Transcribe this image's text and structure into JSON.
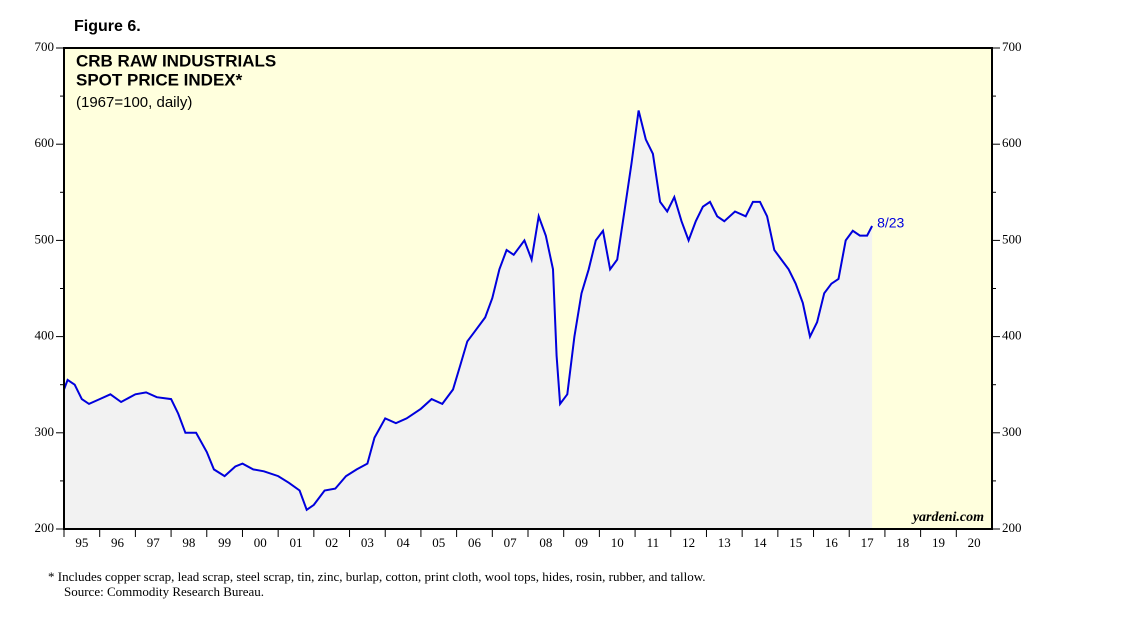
{
  "figure": "Figure 6.",
  "chart_data": {
    "type": "line",
    "title": "CRB RAW INDUSTRIALS",
    "title_line2": "SPOT PRICE INDEX*",
    "subtitle": "(1967=100, daily)",
    "end_label": "8/23",
    "source_mark": "yardeni.com",
    "color": "#0000dd",
    "area_color": "#f2f2f2",
    "background": "#ffffdd",
    "xlim": [
      1995,
      2021
    ],
    "ylim": [
      200,
      700
    ],
    "yticks": [
      200,
      300,
      400,
      500,
      600,
      700
    ],
    "xticks": [
      {
        "value": 1995,
        "label": "95"
      },
      {
        "value": 1996,
        "label": "96"
      },
      {
        "value": 1997,
        "label": "97"
      },
      {
        "value": 1998,
        "label": "98"
      },
      {
        "value": 1999,
        "label": "99"
      },
      {
        "value": 2000,
        "label": "00"
      },
      {
        "value": 2001,
        "label": "01"
      },
      {
        "value": 2002,
        "label": "02"
      },
      {
        "value": 2003,
        "label": "03"
      },
      {
        "value": 2004,
        "label": "04"
      },
      {
        "value": 2005,
        "label": "05"
      },
      {
        "value": 2006,
        "label": "06"
      },
      {
        "value": 2007,
        "label": "07"
      },
      {
        "value": 2008,
        "label": "08"
      },
      {
        "value": 2009,
        "label": "09"
      },
      {
        "value": 2010,
        "label": "10"
      },
      {
        "value": 2011,
        "label": "11"
      },
      {
        "value": 2012,
        "label": "12"
      },
      {
        "value": 2013,
        "label": "13"
      },
      {
        "value": 2014,
        "label": "14"
      },
      {
        "value": 2015,
        "label": "15"
      },
      {
        "value": 2016,
        "label": "16"
      },
      {
        "value": 2017,
        "label": "17"
      },
      {
        "value": 2018,
        "label": "18"
      },
      {
        "value": 2019,
        "label": "19"
      },
      {
        "value": 2020,
        "label": "20"
      }
    ],
    "x": [
      1995.0,
      1995.1,
      1995.3,
      1995.5,
      1995.7,
      1996.0,
      1996.3,
      1996.6,
      1997.0,
      1997.3,
      1997.6,
      1998.0,
      1998.2,
      1998.4,
      1998.7,
      1999.0,
      1999.2,
      1999.5,
      1999.8,
      2000.0,
      2000.3,
      2000.6,
      2001.0,
      2001.3,
      2001.6,
      2001.8,
      2002.0,
      2002.3,
      2002.6,
      2002.9,
      2003.2,
      2003.5,
      2003.7,
      2004.0,
      2004.3,
      2004.6,
      2005.0,
      2005.3,
      2005.6,
      2005.9,
      2006.1,
      2006.3,
      2006.5,
      2006.8,
      2007.0,
      2007.2,
      2007.4,
      2007.6,
      2007.9,
      2008.1,
      2008.3,
      2008.5,
      2008.7,
      2008.8,
      2008.9,
      2009.1,
      2009.3,
      2009.5,
      2009.7,
      2009.9,
      2010.1,
      2010.3,
      2010.5,
      2010.7,
      2010.9,
      2011.1,
      2011.3,
      2011.5,
      2011.7,
      2011.9,
      2012.1,
      2012.3,
      2012.5,
      2012.7,
      2012.9,
      2013.1,
      2013.3,
      2013.5,
      2013.8,
      2014.1,
      2014.3,
      2014.5,
      2014.7,
      2014.9,
      2015.1,
      2015.3,
      2015.5,
      2015.7,
      2015.9,
      2016.1,
      2016.3,
      2016.5,
      2016.7,
      2016.9,
      2017.1,
      2017.3,
      2017.5,
      2017.64
    ],
    "values": [
      345,
      355,
      350,
      335,
      330,
      335,
      340,
      332,
      340,
      342,
      337,
      335,
      320,
      300,
      300,
      280,
      262,
      255,
      265,
      268,
      262,
      260,
      255,
      248,
      240,
      220,
      225,
      240,
      242,
      255,
      262,
      268,
      295,
      315,
      310,
      315,
      325,
      335,
      330,
      345,
      370,
      395,
      405,
      420,
      440,
      470,
      490,
      485,
      500,
      480,
      525,
      505,
      470,
      380,
      330,
      340,
      400,
      445,
      470,
      500,
      510,
      470,
      480,
      530,
      580,
      635,
      605,
      590,
      540,
      530,
      545,
      520,
      500,
      520,
      535,
      540,
      525,
      520,
      530,
      525,
      540,
      540,
      525,
      490,
      480,
      470,
      455,
      435,
      400,
      415,
      445,
      455,
      460,
      500,
      510,
      505,
      505,
      515
    ]
  },
  "footnote": "*   Includes copper scrap, lead scrap, steel scrap, tin, zinc, burlap, cotton, print cloth, wool tops, hides, rosin, rubber, and tallow.",
  "source": "Source: Commodity Research Bureau."
}
